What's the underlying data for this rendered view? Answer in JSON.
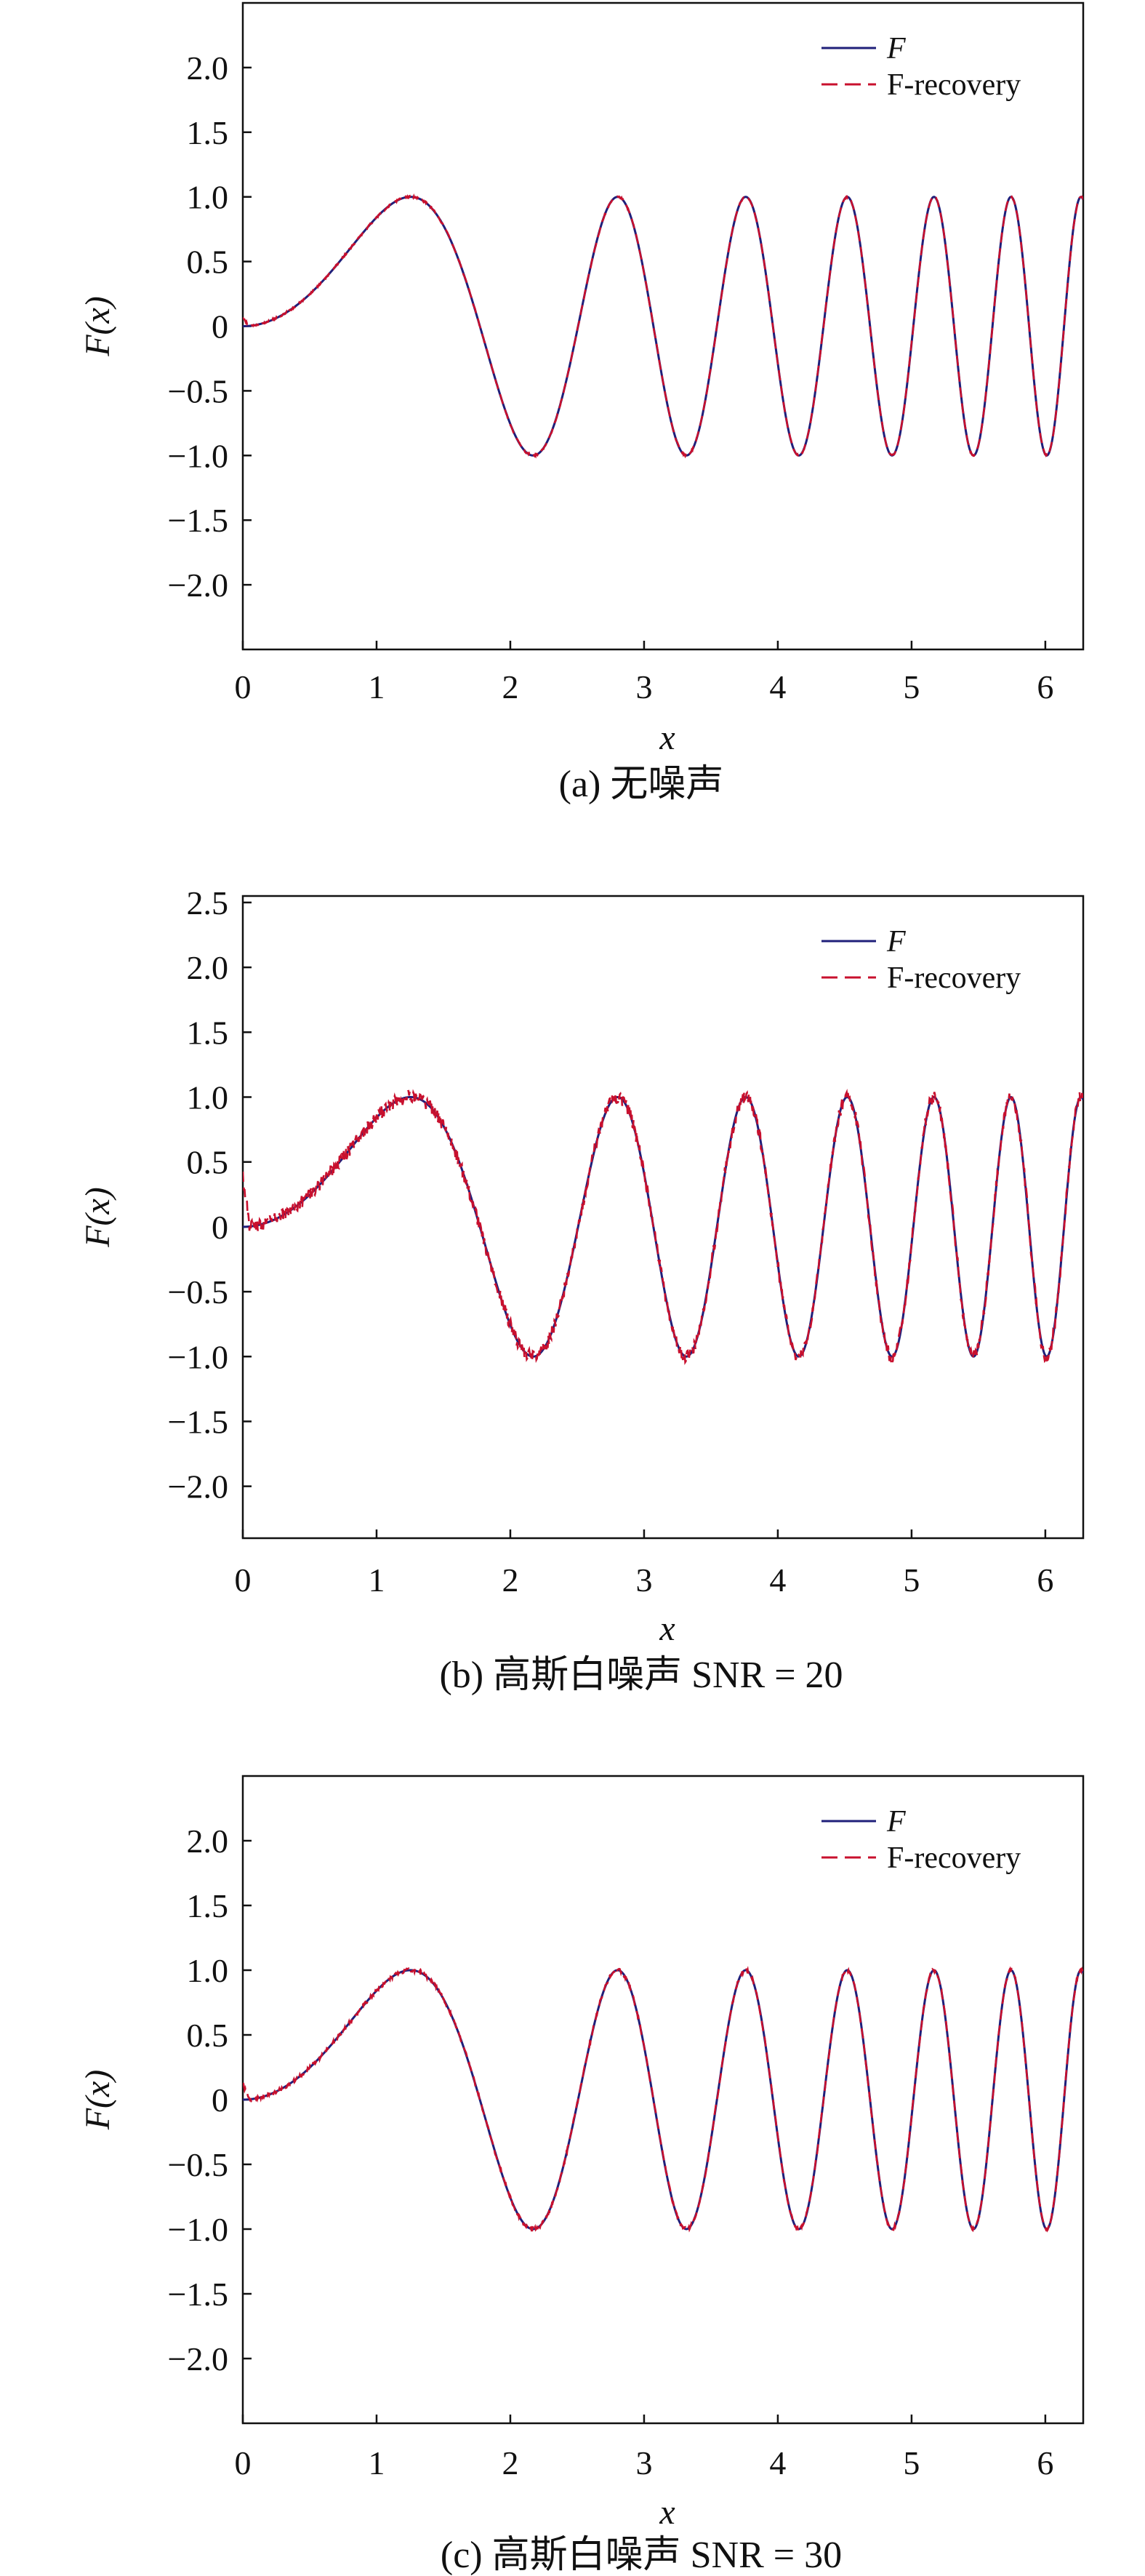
{
  "colors": {
    "F": "#1f1f7a",
    "F_recovery": "#c8102e",
    "axis": "#111111"
  },
  "chart_data": [
    {
      "type": "line",
      "caption": "(a) 无噪声",
      "xlabel": "x",
      "ylabel": "F(x)",
      "xlim": [
        0,
        6.2832
      ],
      "ylim": [
        -2.5,
        2.5
      ],
      "xticks": [
        "0",
        "1",
        "2",
        "3",
        "4",
        "5",
        "6"
      ],
      "yticks": [
        "2.0",
        "1.5",
        "1.0",
        "0.5",
        "0",
        "−0.5",
        "−1.0",
        "−1.5",
        "−2.0"
      ],
      "legend_position": "top-right",
      "series": [
        {
          "name": "F",
          "style": "solid",
          "function": "sin(x^2)"
        },
        {
          "name": "F-recovery",
          "style": "dashed",
          "function": "sin(x^2)",
          "noise": 0.008
        }
      ]
    },
    {
      "type": "line",
      "caption": "(b) 高斯白噪声 SNR = 20",
      "xlabel": "x",
      "ylabel": "F(x)",
      "xlim": [
        0,
        6.2832
      ],
      "ylim": [
        -2.4,
        2.55
      ],
      "xticks": [
        "0",
        "1",
        "2",
        "3",
        "4",
        "5",
        "6"
      ],
      "yticks": [
        "2.5",
        "2.0",
        "1.5",
        "1.0",
        "0.5",
        "0",
        "−0.5",
        "−1.0",
        "−1.5",
        "−2.0"
      ],
      "legend_position": "top-right",
      "series": [
        {
          "name": "F",
          "style": "solid",
          "function": "sin(x^2)"
        },
        {
          "name": "F-recovery",
          "style": "dashed",
          "function": "sin(x^2)",
          "noise": 0.05
        }
      ]
    },
    {
      "type": "line",
      "caption": "(c) 高斯白噪声 SNR = 30",
      "xlabel": "x",
      "ylabel": "F(x)",
      "xlim": [
        0,
        6.2832
      ],
      "ylim": [
        -2.5,
        2.5
      ],
      "xticks": [
        "0",
        "1",
        "2",
        "3",
        "4",
        "5",
        "6"
      ],
      "yticks": [
        "2.0",
        "1.5",
        "1.0",
        "0.5",
        "0",
        "−0.5",
        "−1.0",
        "−1.5",
        "−2.0"
      ],
      "legend_position": "top-right",
      "series": [
        {
          "name": "F",
          "style": "solid",
          "function": "sin(x^2)"
        },
        {
          "name": "F-recovery",
          "style": "dashed",
          "function": "sin(x^2)",
          "noise": 0.015
        }
      ]
    }
  ]
}
